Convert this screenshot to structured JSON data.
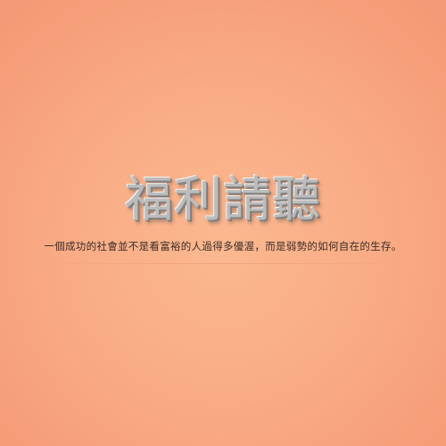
{
  "title": "福利請聽",
  "subtitle": "一個成功的社會並不是看富裕的人過得多優渥，而是弱勢的如何自在的生存。",
  "colors": {
    "background_center": "#fbb88f",
    "background_edge": "#f59a76",
    "title_fill": "#bcbcbc",
    "subtitle_text": "#3b2e2a"
  }
}
